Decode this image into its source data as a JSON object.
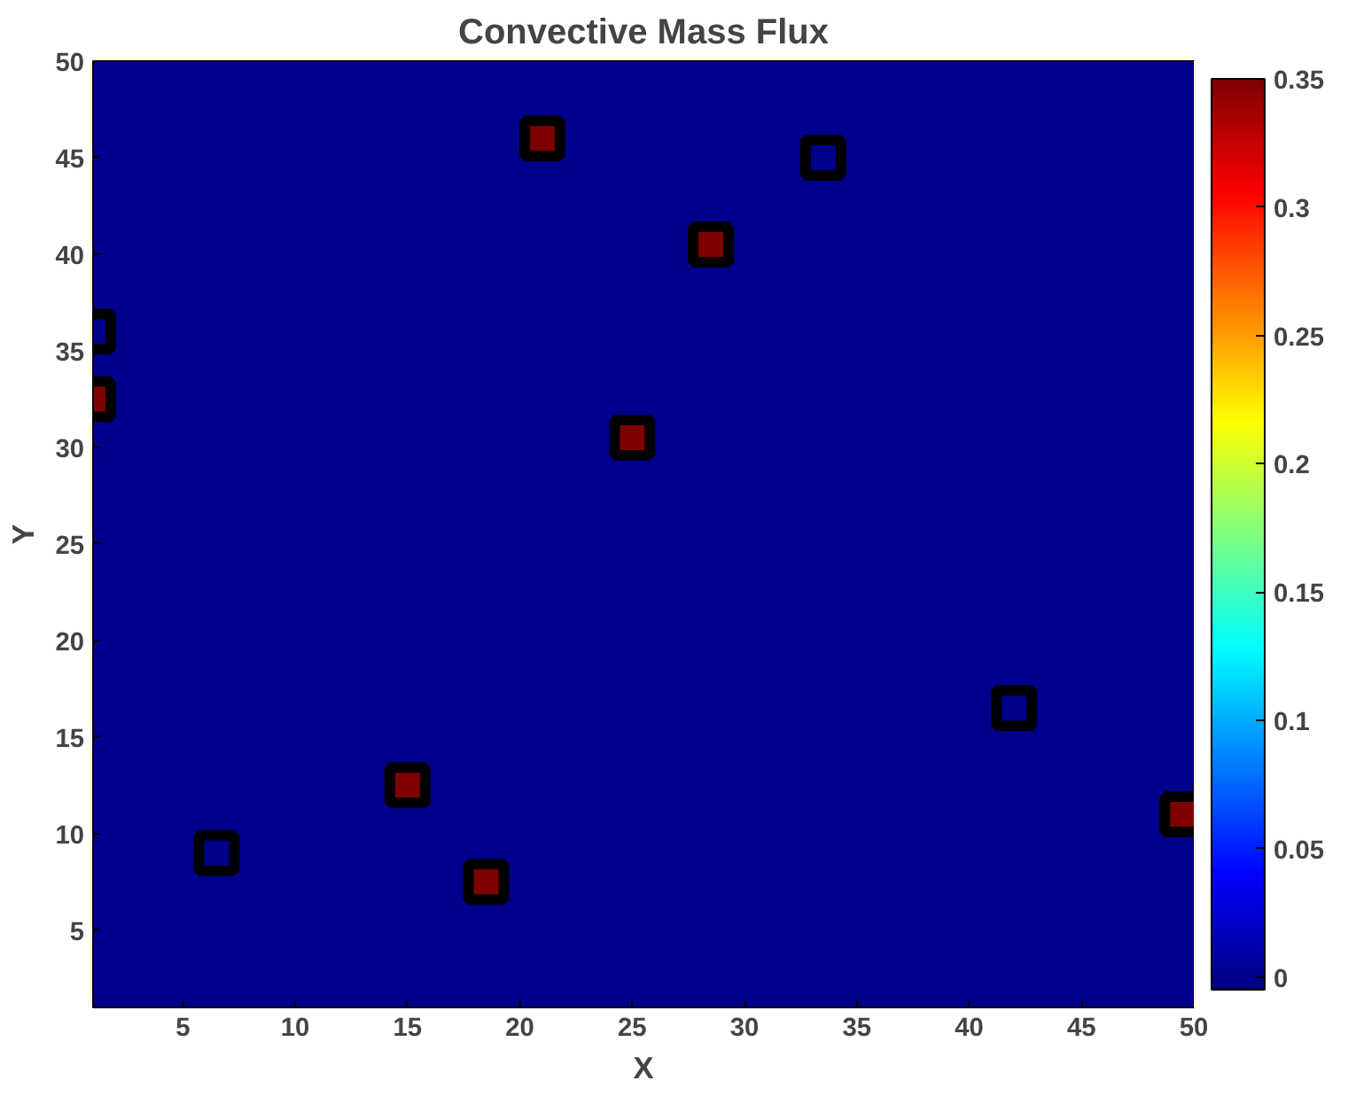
{
  "chart_data": {
    "type": "scatter",
    "title": "Convective Mass Flux",
    "xlabel": "X",
    "ylabel": "Y",
    "x": [
      21,
      28.5,
      33.5,
      1,
      1,
      25,
      42,
      15,
      6.5,
      18.5,
      49.5
    ],
    "values": [
      46,
      40.5,
      45,
      36,
      32.5,
      30.5,
      16.5,
      12.5,
      9,
      7.5,
      11
    ],
    "cvalues": [
      0.35,
      0.35,
      0,
      0,
      0.35,
      0.35,
      0,
      0.35,
      0,
      0.35,
      0.35
    ],
    "marker": "square",
    "grid": false,
    "xlim": [
      1,
      50
    ],
    "ylim": [
      1,
      50
    ],
    "xticks": [
      5,
      10,
      15,
      20,
      25,
      30,
      35,
      40,
      45,
      50
    ],
    "yticks": [
      5,
      10,
      15,
      20,
      25,
      30,
      35,
      40,
      45,
      50
    ],
    "clim": [
      -0.005,
      0.35
    ],
    "cticks": [
      0,
      0.05,
      0.1,
      0.15,
      0.2,
      0.25,
      0.3,
      0.35
    ]
  }
}
